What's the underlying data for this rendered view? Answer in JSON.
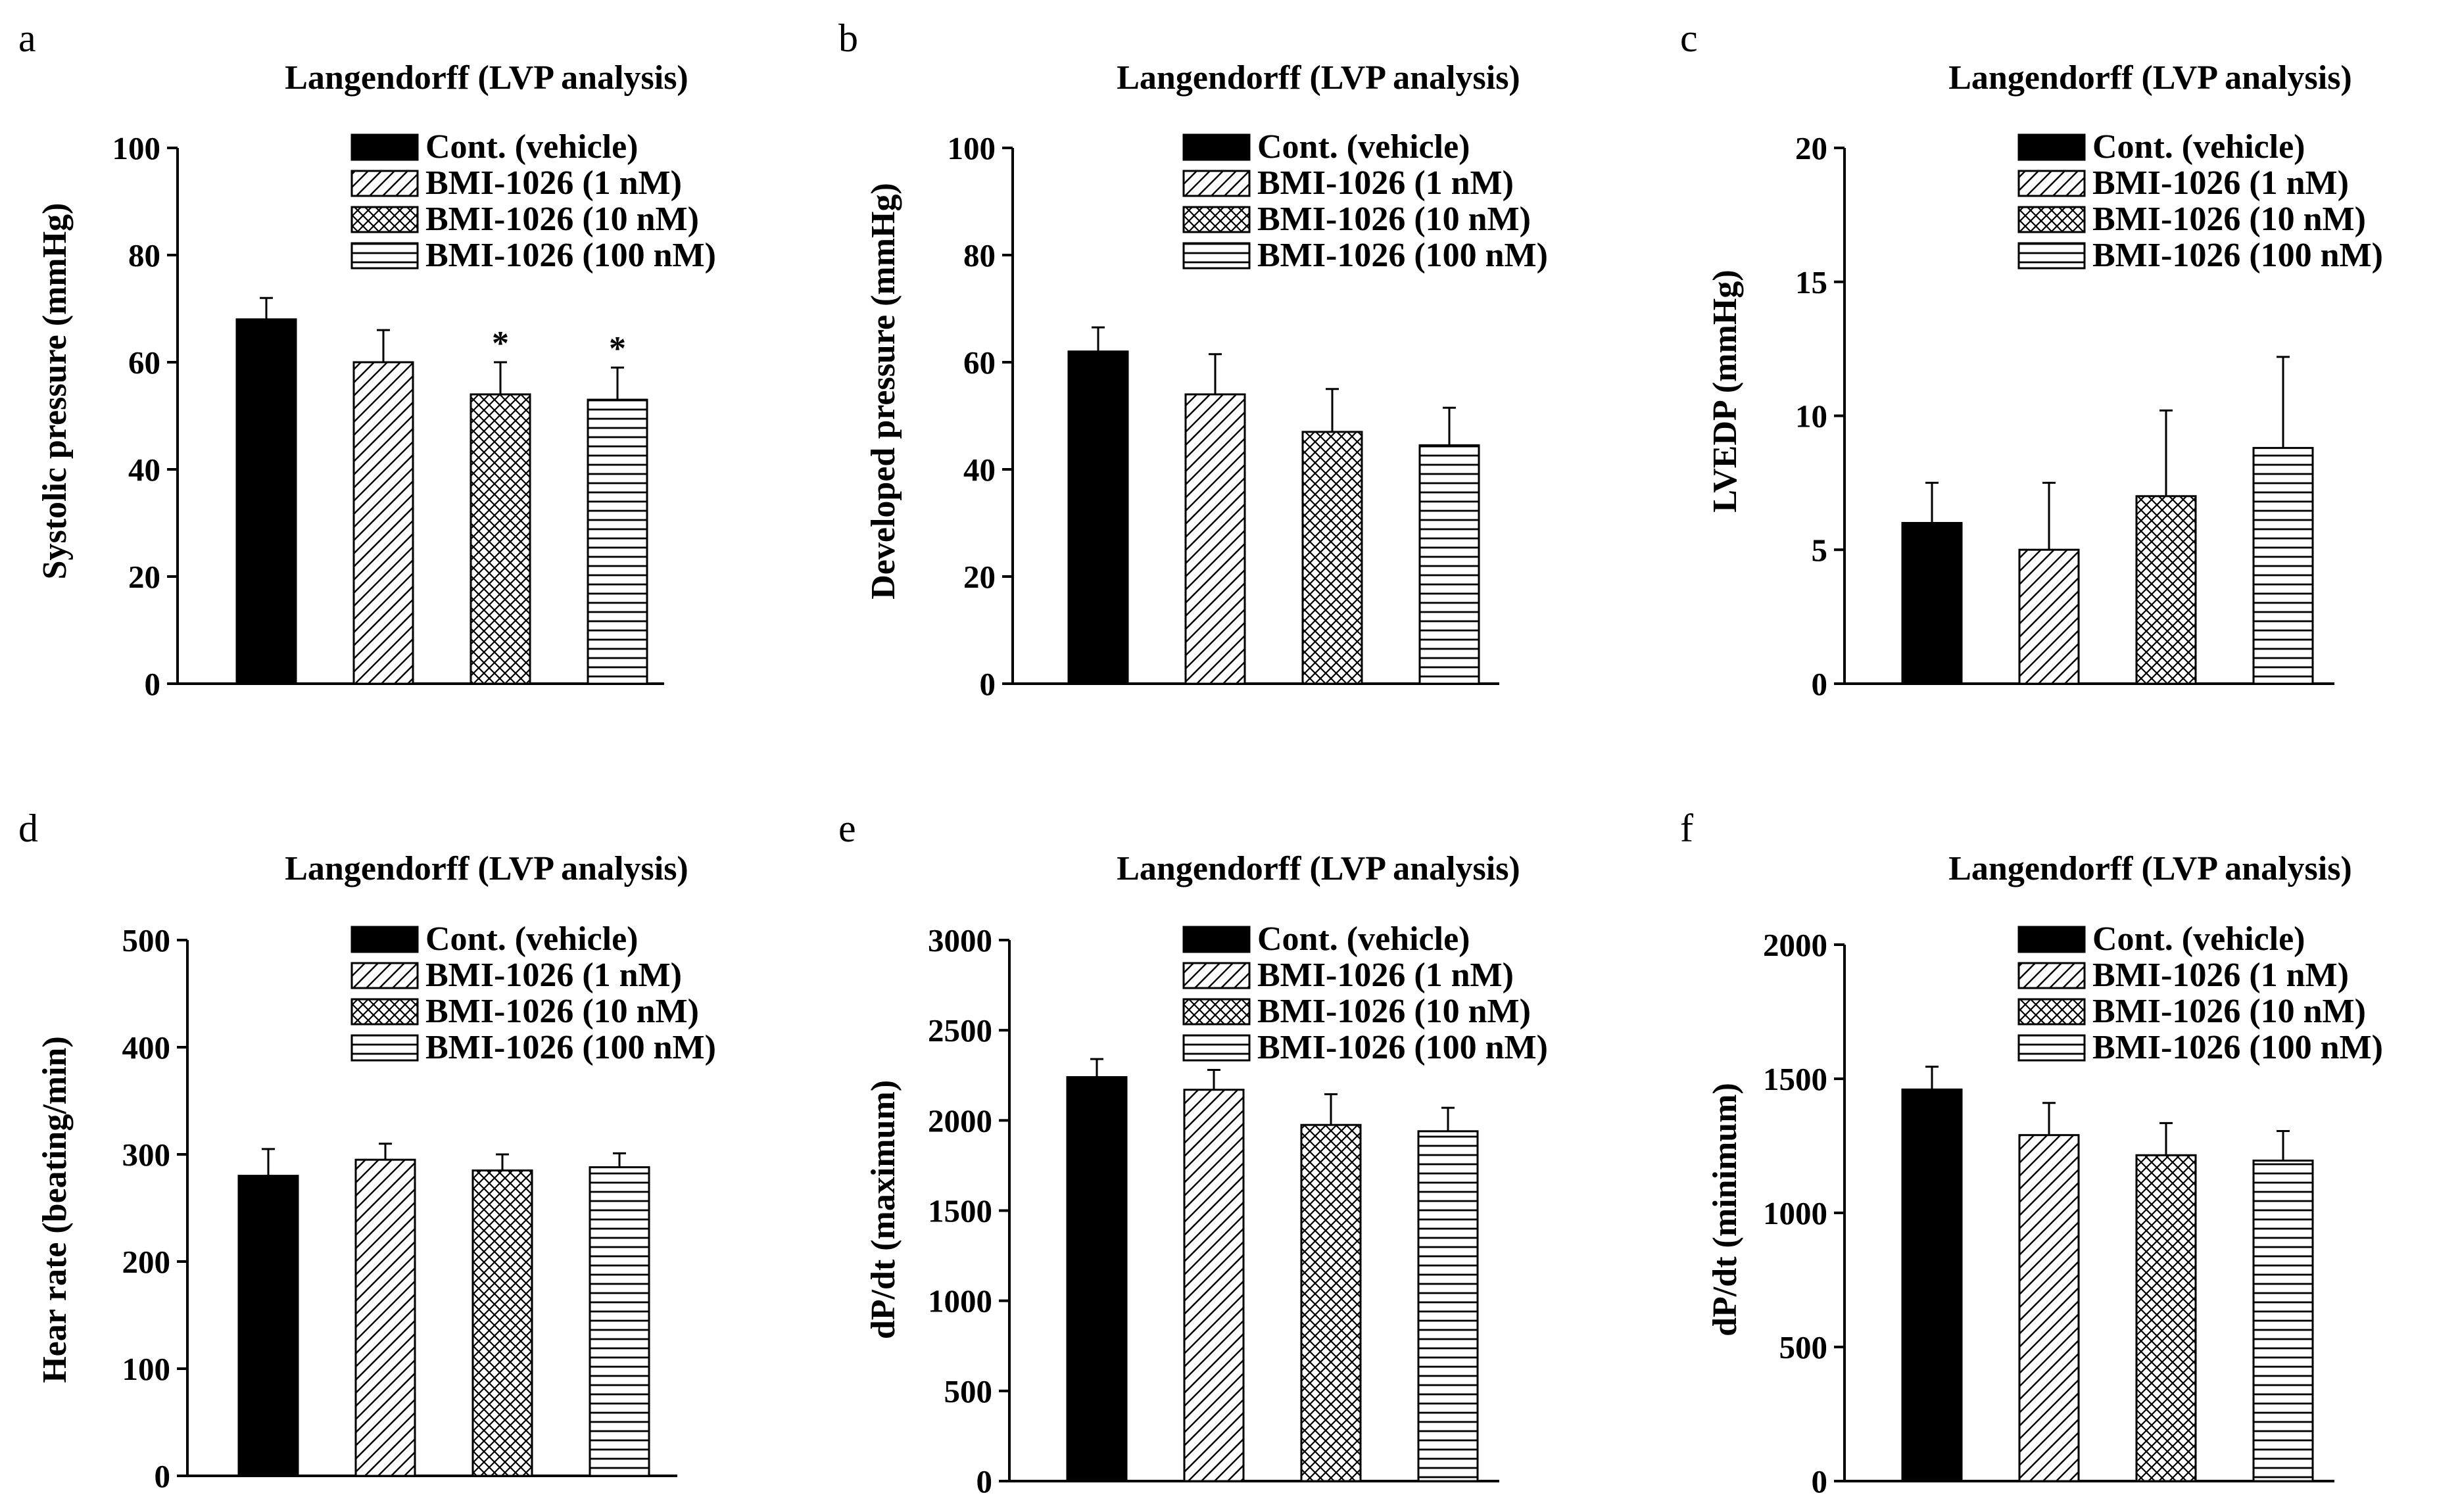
{
  "chart_data": [
    {
      "panel": "a",
      "type": "bar",
      "title": "Langendorff (LVP analysis)",
      "ylabel": "Systolic pressure (mmHg)",
      "ylim": [
        0,
        100
      ],
      "yticks": [
        0,
        20,
        40,
        60,
        80,
        100
      ],
      "legend": [
        "Cont. (vehicle)",
        "BMI-1026 (1 nM)",
        "BMI-1026 (10 nM)",
        "BMI-1026 (100 nM)"
      ],
      "values": [
        68,
        60,
        54,
        53
      ],
      "errors": [
        4,
        6,
        6,
        6
      ],
      "annotations": [
        "",
        "",
        "*",
        "*"
      ]
    },
    {
      "panel": "b",
      "type": "bar",
      "title": "Langendorff (LVP analysis)",
      "ylabel": "Developed pressure (mmHg)",
      "ylim": [
        0,
        100
      ],
      "yticks": [
        0,
        20,
        40,
        60,
        80,
        100
      ],
      "legend": [
        "Cont. (vehicle)",
        "BMI-1026 (1 nM)",
        "BMI-1026 (10 nM)",
        "BMI-1026 (100 nM)"
      ],
      "values": [
        62,
        54,
        47,
        44.5
      ],
      "errors": [
        4.5,
        7.5,
        8,
        7
      ],
      "annotations": [
        "",
        "",
        "",
        ""
      ]
    },
    {
      "panel": "c",
      "type": "bar",
      "title": "Langendorff (LVP analysis)",
      "ylabel": "LVEDP (mmHg)",
      "ylim": [
        0,
        20
      ],
      "yticks": [
        0,
        5,
        10,
        15,
        20
      ],
      "legend": [
        "Cont. (vehicle)",
        "BMI-1026 (1 nM)",
        "BMI-1026 (10 nM)",
        "BMI-1026 (100 nM)"
      ],
      "values": [
        6,
        5,
        7,
        8.8
      ],
      "errors": [
        1.5,
        2.5,
        3.2,
        3.4
      ],
      "annotations": [
        "",
        "",
        "",
        ""
      ]
    },
    {
      "panel": "d",
      "type": "bar",
      "title": "Langendorff (LVP analysis)",
      "ylabel": "Hear rate (beating/min)",
      "ylim": [
        0,
        500
      ],
      "yticks": [
        0,
        100,
        200,
        300,
        400,
        500
      ],
      "legend": [
        "Cont. (vehicle)",
        "BMI-1026 (1 nM)",
        "BMI-1026 (10 nM)",
        "BMI-1026 (100 nM)"
      ],
      "values": [
        280,
        295,
        285,
        288
      ],
      "errors": [
        25,
        15,
        15,
        13
      ],
      "annotations": [
        "",
        "",
        "",
        ""
      ]
    },
    {
      "panel": "e",
      "type": "bar",
      "title": "Langendorff (LVP analysis)",
      "ylabel": "dP/dt (maximum)",
      "ylim": [
        0,
        3000
      ],
      "yticks": [
        0,
        500,
        1000,
        1500,
        2000,
        2500,
        3000
      ],
      "legend": [
        "Cont. (vehicle)",
        "BMI-1026 (1 nM)",
        "BMI-1026 (10 nM)",
        "BMI-1026 (100 nM)"
      ],
      "values": [
        2240,
        2170,
        1975,
        1940
      ],
      "errors": [
        100,
        110,
        170,
        130
      ],
      "annotations": [
        "",
        "",
        "",
        ""
      ]
    },
    {
      "panel": "f",
      "type": "bar",
      "title": "Langendorff (LVP analysis)",
      "ylabel": "dP/dt (minimum)",
      "ylim": [
        0,
        2000
      ],
      "yticks": [
        0,
        500,
        1000,
        1500,
        2000
      ],
      "legend": [
        "Cont. (vehicle)",
        "BMI-1026 (1 nM)",
        "BMI-1026 (10 nM)",
        "BMI-1026 (100 nM)"
      ],
      "values": [
        1460,
        1290,
        1215,
        1195
      ],
      "errors": [
        85,
        120,
        120,
        110
      ],
      "annotations": [
        "",
        "",
        "",
        ""
      ]
    }
  ]
}
